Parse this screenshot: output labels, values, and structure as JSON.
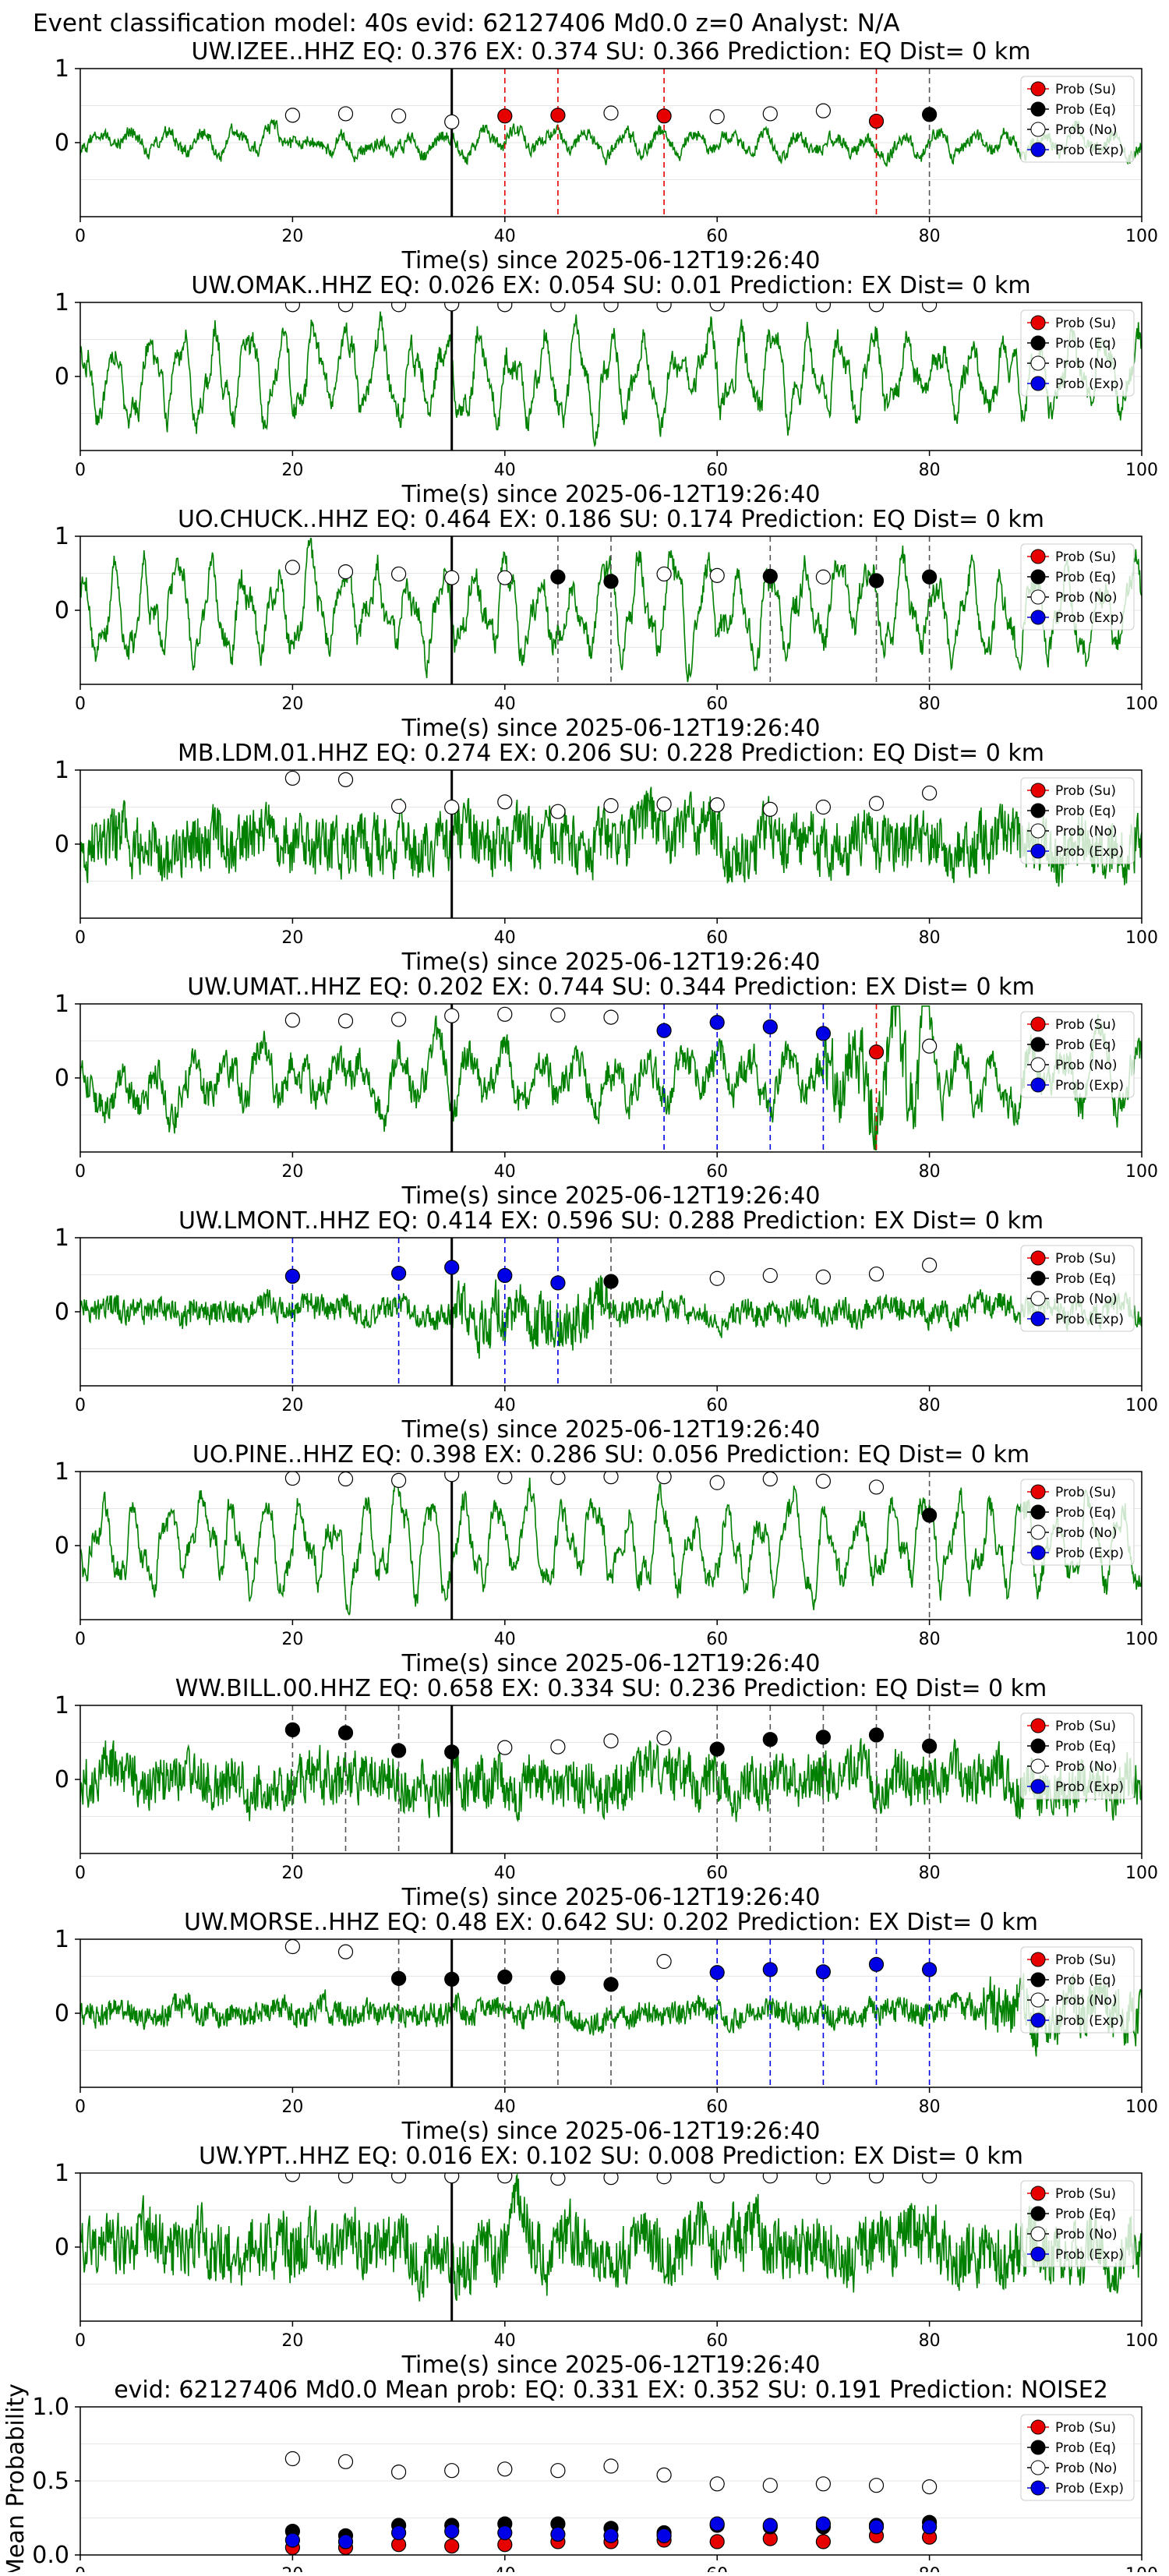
{
  "suptitle": "Event classification model: 40s evid: 62127406 Md0.0 z=0 Analyst: N/A",
  "legend_labels": [
    "Prob (Su)",
    "Prob (Eq)",
    "Prob (No)",
    "Prob (Exp)"
  ],
  "colors": {
    "waveform": "#008000",
    "su": "#e60000",
    "eq": "#000000",
    "no": "#ffffff",
    "exp": "#0000e6",
    "window_line": "#000000",
    "frame": "#000000",
    "grid": "#e6e6e6"
  },
  "chart_data": [
    {
      "type": "line",
      "title": "UW.IZEE..HHZ   EQ: 0.376  EX: 0.374  SU: 0.366   Prediction: EQ    Dist= 0 km",
      "xlabel": "Time(s) since 2025-06-12T19:26:40",
      "xlim": [
        0,
        100
      ],
      "ylim": [
        -1,
        1
      ],
      "xticks": [
        "0",
        "20",
        "40",
        "60",
        "80",
        "100"
      ],
      "yticks": [
        "1",
        "0"
      ],
      "window_line_x": 35,
      "amplitude": 0.22,
      "style": "mixed",
      "seed": 11,
      "markers": [
        {
          "x": 20,
          "y": 0.37,
          "class": "No"
        },
        {
          "x": 25,
          "y": 0.39,
          "class": "No"
        },
        {
          "x": 30,
          "y": 0.36,
          "class": "No"
        },
        {
          "x": 35,
          "y": 0.28,
          "class": "No"
        },
        {
          "x": 40,
          "y": 0.36,
          "class": "Su"
        },
        {
          "x": 45,
          "y": 0.37,
          "class": "Su"
        },
        {
          "x": 50,
          "y": 0.4,
          "class": "No"
        },
        {
          "x": 55,
          "y": 0.36,
          "class": "Su"
        },
        {
          "x": 60,
          "y": 0.35,
          "class": "No"
        },
        {
          "x": 65,
          "y": 0.39,
          "class": "No"
        },
        {
          "x": 70,
          "y": 0.43,
          "class": "No"
        },
        {
          "x": 75,
          "y": 0.29,
          "class": "Su"
        },
        {
          "x": 80,
          "y": 0.38,
          "class": "Eq"
        }
      ]
    },
    {
      "type": "line",
      "title": "UW.OMAK..HHZ   EQ: 0.026  EX: 0.054  SU: 0.01   Prediction: EX    Dist= 0 km",
      "xlabel": "Time(s) since 2025-06-12T19:26:40",
      "xlim": [
        0,
        100
      ],
      "ylim": [
        -1,
        1
      ],
      "xticks": [
        "0",
        "20",
        "40",
        "60",
        "80",
        "100"
      ],
      "yticks": [
        "1",
        "0"
      ],
      "window_line_x": 35,
      "amplitude": 0.6,
      "style": "oscillating",
      "seed": 23,
      "markers": [
        {
          "x": 20,
          "y": 0.97,
          "class": "No"
        },
        {
          "x": 25,
          "y": 0.97,
          "class": "No"
        },
        {
          "x": 30,
          "y": 0.97,
          "class": "No"
        },
        {
          "x": 35,
          "y": 0.98,
          "class": "No"
        },
        {
          "x": 40,
          "y": 0.97,
          "class": "No"
        },
        {
          "x": 45,
          "y": 0.97,
          "class": "No"
        },
        {
          "x": 50,
          "y": 0.97,
          "class": "No"
        },
        {
          "x": 55,
          "y": 0.97,
          "class": "No"
        },
        {
          "x": 60,
          "y": 0.98,
          "class": "No"
        },
        {
          "x": 65,
          "y": 0.97,
          "class": "No"
        },
        {
          "x": 70,
          "y": 0.97,
          "class": "No"
        },
        {
          "x": 75,
          "y": 0.97,
          "class": "No"
        },
        {
          "x": 80,
          "y": 0.97,
          "class": "No"
        }
      ]
    },
    {
      "type": "line",
      "title": "UO.CHUCK..HHZ   EQ: 0.464  EX: 0.186  SU: 0.174   Prediction: EQ    Dist= 0 km",
      "xlabel": "Time(s) since 2025-06-12T19:26:40",
      "xlim": [
        0,
        100
      ],
      "ylim": [
        -1,
        1
      ],
      "xticks": [
        "0",
        "20",
        "40",
        "60",
        "80",
        "100"
      ],
      "yticks": [
        "1",
        "0"
      ],
      "window_line_x": 35,
      "amplitude": 0.65,
      "style": "oscillating",
      "seed": 37,
      "markers": [
        {
          "x": 20,
          "y": 0.58,
          "class": "No"
        },
        {
          "x": 25,
          "y": 0.52,
          "class": "No"
        },
        {
          "x": 30,
          "y": 0.49,
          "class": "No"
        },
        {
          "x": 35,
          "y": 0.44,
          "class": "No"
        },
        {
          "x": 40,
          "y": 0.44,
          "class": "No"
        },
        {
          "x": 45,
          "y": 0.45,
          "class": "Eq"
        },
        {
          "x": 50,
          "y": 0.39,
          "class": "Eq"
        },
        {
          "x": 55,
          "y": 0.49,
          "class": "No"
        },
        {
          "x": 60,
          "y": 0.47,
          "class": "No"
        },
        {
          "x": 65,
          "y": 0.46,
          "class": "Eq"
        },
        {
          "x": 70,
          "y": 0.45,
          "class": "No"
        },
        {
          "x": 75,
          "y": 0.4,
          "class": "Eq"
        },
        {
          "x": 80,
          "y": 0.45,
          "class": "Eq"
        }
      ]
    },
    {
      "type": "line",
      "title": "MB.LDM.01.HHZ   EQ: 0.274  EX: 0.206  SU: 0.228   Prediction: EQ    Dist= 0 km",
      "xlabel": "Time(s) since 2025-06-12T19:26:40",
      "xlim": [
        0,
        100
      ],
      "ylim": [
        -1,
        1
      ],
      "xticks": [
        "0",
        "20",
        "40",
        "60",
        "80",
        "100"
      ],
      "yticks": [
        "1",
        "0"
      ],
      "window_line_x": 35,
      "amplitude": 0.5,
      "style": "noisy",
      "seed": 41,
      "markers": [
        {
          "x": 20,
          "y": 0.89,
          "class": "No"
        },
        {
          "x": 25,
          "y": 0.87,
          "class": "No"
        },
        {
          "x": 30,
          "y": 0.51,
          "class": "No"
        },
        {
          "x": 35,
          "y": 0.5,
          "class": "No"
        },
        {
          "x": 40,
          "y": 0.57,
          "class": "No"
        },
        {
          "x": 45,
          "y": 0.44,
          "class": "No"
        },
        {
          "x": 50,
          "y": 0.52,
          "class": "No"
        },
        {
          "x": 55,
          "y": 0.54,
          "class": "No"
        },
        {
          "x": 60,
          "y": 0.53,
          "class": "No"
        },
        {
          "x": 65,
          "y": 0.47,
          "class": "No"
        },
        {
          "x": 70,
          "y": 0.5,
          "class": "No"
        },
        {
          "x": 75,
          "y": 0.55,
          "class": "No"
        },
        {
          "x": 80,
          "y": 0.69,
          "class": "No"
        }
      ]
    },
    {
      "type": "line",
      "title": "UW.UMAT..HHZ   EQ: 0.202  EX: 0.744  SU: 0.344   Prediction: EX    Dist= 0 km",
      "xlabel": "Time(s) since 2025-06-12T19:26:40",
      "xlim": [
        0,
        100
      ],
      "ylim": [
        -1,
        1
      ],
      "xticks": [
        "0",
        "20",
        "40",
        "60",
        "80",
        "100"
      ],
      "yticks": [
        "1",
        "0"
      ],
      "window_line_x": 35,
      "amplitude": 0.55,
      "style": "mixed",
      "seed": 53,
      "burst": [
        70,
        80
      ],
      "markers": [
        {
          "x": 20,
          "y": 0.78,
          "class": "No"
        },
        {
          "x": 25,
          "y": 0.77,
          "class": "No"
        },
        {
          "x": 30,
          "y": 0.79,
          "class": "No"
        },
        {
          "x": 35,
          "y": 0.84,
          "class": "No"
        },
        {
          "x": 40,
          "y": 0.86,
          "class": "No"
        },
        {
          "x": 45,
          "y": 0.85,
          "class": "No"
        },
        {
          "x": 50,
          "y": 0.82,
          "class": "No"
        },
        {
          "x": 55,
          "y": 0.64,
          "class": "Exp"
        },
        {
          "x": 60,
          "y": 0.75,
          "class": "Exp"
        },
        {
          "x": 65,
          "y": 0.69,
          "class": "Exp"
        },
        {
          "x": 70,
          "y": 0.6,
          "class": "Exp"
        },
        {
          "x": 75,
          "y": 0.35,
          "class": "Su"
        },
        {
          "x": 80,
          "y": 0.43,
          "class": "No"
        }
      ]
    },
    {
      "type": "line",
      "title": "UW.LMONT..HHZ   EQ: 0.414  EX: 0.596  SU: 0.288   Prediction: EX    Dist= 0 km",
      "xlabel": "Time(s) since 2025-06-12T19:26:40",
      "xlim": [
        0,
        100
      ],
      "ylim": [
        -1,
        1
      ],
      "xticks": [
        "0",
        "20",
        "40",
        "60",
        "80",
        "100"
      ],
      "yticks": [
        "1",
        "0"
      ],
      "window_line_x": 35,
      "amplitude": 0.22,
      "style": "noisy",
      "seed": 67,
      "burst": [
        35,
        50
      ],
      "markers": [
        {
          "x": 20,
          "y": 0.48,
          "class": "Exp"
        },
        {
          "x": 30,
          "y": 0.52,
          "class": "Exp"
        },
        {
          "x": 35,
          "y": 0.6,
          "class": "Exp"
        },
        {
          "x": 40,
          "y": 0.49,
          "class": "Exp"
        },
        {
          "x": 45,
          "y": 0.39,
          "class": "Exp"
        },
        {
          "x": 50,
          "y": 0.41,
          "class": "Eq"
        },
        {
          "x": 60,
          "y": 0.45,
          "class": "No"
        },
        {
          "x": 65,
          "y": 0.49,
          "class": "No"
        },
        {
          "x": 70,
          "y": 0.47,
          "class": "No"
        },
        {
          "x": 75,
          "y": 0.51,
          "class": "No"
        },
        {
          "x": 80,
          "y": 0.63,
          "class": "No"
        }
      ]
    },
    {
      "type": "line",
      "title": "UO.PINE..HHZ   EQ: 0.398  EX: 0.286  SU: 0.056   Prediction: EQ    Dist= 0 km",
      "xlabel": "Time(s) since 2025-06-12T19:26:40",
      "xlim": [
        0,
        100
      ],
      "ylim": [
        -1,
        1
      ],
      "xticks": [
        "0",
        "20",
        "40",
        "60",
        "80",
        "100"
      ],
      "yticks": [
        "1",
        "0"
      ],
      "window_line_x": 35,
      "amplitude": 0.6,
      "style": "oscillating",
      "seed": 79,
      "markers": [
        {
          "x": 20,
          "y": 0.91,
          "class": "No"
        },
        {
          "x": 25,
          "y": 0.9,
          "class": "No"
        },
        {
          "x": 30,
          "y": 0.88,
          "class": "No"
        },
        {
          "x": 35,
          "y": 0.96,
          "class": "No"
        },
        {
          "x": 40,
          "y": 0.93,
          "class": "No"
        },
        {
          "x": 45,
          "y": 0.92,
          "class": "No"
        },
        {
          "x": 50,
          "y": 0.93,
          "class": "No"
        },
        {
          "x": 55,
          "y": 0.93,
          "class": "No"
        },
        {
          "x": 60,
          "y": 0.85,
          "class": "No"
        },
        {
          "x": 65,
          "y": 0.9,
          "class": "No"
        },
        {
          "x": 70,
          "y": 0.87,
          "class": "No"
        },
        {
          "x": 75,
          "y": 0.79,
          "class": "No"
        },
        {
          "x": 80,
          "y": 0.41,
          "class": "Eq"
        }
      ]
    },
    {
      "type": "line",
      "title": "WW.BILL.00.HHZ   EQ: 0.658  EX: 0.334  SU: 0.236   Prediction: EQ    Dist= 0 km",
      "xlabel": "Time(s) since 2025-06-12T19:26:40",
      "xlim": [
        0,
        100
      ],
      "ylim": [
        -1,
        1
      ],
      "xticks": [
        "0",
        "20",
        "40",
        "60",
        "80",
        "100"
      ],
      "yticks": [
        "1",
        "0"
      ],
      "window_line_x": 35,
      "amplitude": 0.45,
      "style": "noisy",
      "seed": 83,
      "markers": [
        {
          "x": 20,
          "y": 0.67,
          "class": "Eq"
        },
        {
          "x": 25,
          "y": 0.63,
          "class": "Eq"
        },
        {
          "x": 30,
          "y": 0.39,
          "class": "Eq"
        },
        {
          "x": 35,
          "y": 0.37,
          "class": "Eq"
        },
        {
          "x": 40,
          "y": 0.43,
          "class": "No"
        },
        {
          "x": 45,
          "y": 0.44,
          "class": "No"
        },
        {
          "x": 50,
          "y": 0.52,
          "class": "No"
        },
        {
          "x": 55,
          "y": 0.56,
          "class": "No"
        },
        {
          "x": 60,
          "y": 0.41,
          "class": "Eq"
        },
        {
          "x": 65,
          "y": 0.54,
          "class": "Eq"
        },
        {
          "x": 70,
          "y": 0.57,
          "class": "Eq"
        },
        {
          "x": 75,
          "y": 0.6,
          "class": "Eq"
        },
        {
          "x": 80,
          "y": 0.45,
          "class": "Eq"
        }
      ]
    },
    {
      "type": "line",
      "title": "UW.MORSE..HHZ   EQ: 0.48  EX: 0.642  SU: 0.202   Prediction: EX    Dist= 0 km",
      "xlabel": "Time(s) since 2025-06-12T19:26:40",
      "xlim": [
        0,
        100
      ],
      "ylim": [
        -1,
        1
      ],
      "xticks": [
        "0",
        "20",
        "40",
        "60",
        "80",
        "100"
      ],
      "yticks": [
        "1",
        "0"
      ],
      "window_line_x": 35,
      "amplitude": 0.22,
      "style": "noisy",
      "seed": 97,
      "burst": [
        85,
        100
      ],
      "markers": [
        {
          "x": 20,
          "y": 0.9,
          "class": "No"
        },
        {
          "x": 25,
          "y": 0.83,
          "class": "No"
        },
        {
          "x": 30,
          "y": 0.47,
          "class": "Eq"
        },
        {
          "x": 35,
          "y": 0.46,
          "class": "Eq"
        },
        {
          "x": 40,
          "y": 0.49,
          "class": "Eq"
        },
        {
          "x": 45,
          "y": 0.48,
          "class": "Eq"
        },
        {
          "x": 50,
          "y": 0.39,
          "class": "Eq"
        },
        {
          "x": 55,
          "y": 0.7,
          "class": "No"
        },
        {
          "x": 60,
          "y": 0.55,
          "class": "Exp"
        },
        {
          "x": 65,
          "y": 0.59,
          "class": "Exp"
        },
        {
          "x": 70,
          "y": 0.56,
          "class": "Exp"
        },
        {
          "x": 75,
          "y": 0.66,
          "class": "Exp"
        },
        {
          "x": 80,
          "y": 0.59,
          "class": "Exp"
        }
      ]
    },
    {
      "type": "line",
      "title": "UW.YPT..HHZ   EQ: 0.016  EX: 0.102  SU: 0.008   Prediction: EX    Dist= 0 km",
      "xlabel": "Time(s) since 2025-06-12T19:26:40",
      "xlim": [
        0,
        100
      ],
      "ylim": [
        -1,
        1
      ],
      "xticks": [
        "0",
        "20",
        "40",
        "60",
        "80",
        "100"
      ],
      "yticks": [
        "1",
        "0"
      ],
      "window_line_x": 35,
      "amplitude": 0.55,
      "style": "noisy",
      "seed": 101,
      "markers": [
        {
          "x": 20,
          "y": 0.98,
          "class": "No"
        },
        {
          "x": 25,
          "y": 0.96,
          "class": "No"
        },
        {
          "x": 30,
          "y": 0.96,
          "class": "No"
        },
        {
          "x": 35,
          "y": 0.96,
          "class": "No"
        },
        {
          "x": 40,
          "y": 0.96,
          "class": "No"
        },
        {
          "x": 45,
          "y": 0.93,
          "class": "No"
        },
        {
          "x": 50,
          "y": 0.94,
          "class": "No"
        },
        {
          "x": 55,
          "y": 0.95,
          "class": "No"
        },
        {
          "x": 60,
          "y": 0.96,
          "class": "No"
        },
        {
          "x": 65,
          "y": 0.96,
          "class": "No"
        },
        {
          "x": 70,
          "y": 0.95,
          "class": "No"
        },
        {
          "x": 75,
          "y": 0.96,
          "class": "No"
        },
        {
          "x": 80,
          "y": 0.96,
          "class": "No"
        }
      ]
    },
    {
      "type": "scatter",
      "title": "evid: 62127406  Md0.0   Mean prob:   EQ: 0.331  EX: 0.352  SU: 0.191   Prediction: NOISE2",
      "ylabel": "Mean Probability",
      "xlim": [
        0,
        100
      ],
      "ylim": [
        0,
        1
      ],
      "xticks": [
        "0",
        "20",
        "40",
        "60",
        "80",
        "100"
      ],
      "yticks": [
        "1.0",
        "0.5",
        "0.0"
      ],
      "x": [
        20,
        25,
        30,
        35,
        40,
        45,
        50,
        55,
        60,
        65,
        70,
        75,
        80
      ],
      "series": [
        {
          "name": "Prob (Su)",
          "class": "Su",
          "values": [
            0.05,
            0.05,
            0.07,
            0.06,
            0.07,
            0.09,
            0.09,
            0.1,
            0.09,
            0.11,
            0.09,
            0.13,
            0.12
          ]
        },
        {
          "name": "Prob (Eq)",
          "class": "Eq",
          "values": [
            0.16,
            0.13,
            0.2,
            0.2,
            0.21,
            0.21,
            0.18,
            0.15,
            0.2,
            0.19,
            0.19,
            0.2,
            0.22
          ]
        },
        {
          "name": "Prob (No)",
          "class": "No",
          "values": [
            0.65,
            0.63,
            0.56,
            0.57,
            0.58,
            0.57,
            0.6,
            0.54,
            0.48,
            0.47,
            0.48,
            0.47,
            0.46
          ]
        },
        {
          "name": "Prob (Exp)",
          "class": "Exp",
          "values": [
            0.1,
            0.09,
            0.15,
            0.16,
            0.15,
            0.14,
            0.13,
            0.13,
            0.21,
            0.2,
            0.21,
            0.19,
            0.19
          ]
        }
      ]
    }
  ]
}
